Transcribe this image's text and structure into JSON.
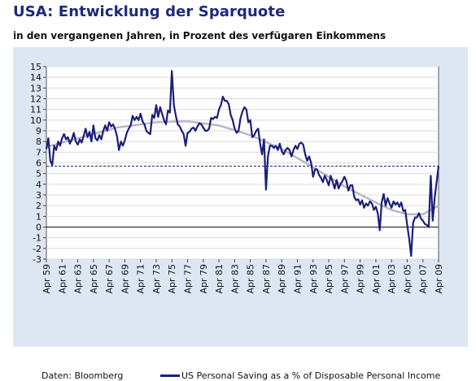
{
  "title": "USA: Entwicklung der Sparquote",
  "subtitle": "in den vergangenen Jahren, in Prozent des verfügaren Einkommens",
  "source_note": "Daten: Bloomberg",
  "caption": "",
  "colors": {
    "background": "#dde7f3",
    "plot_area": "#ffffff",
    "series": "#1a1f7a",
    "trend": "#b8b8c8",
    "reference_line": "#1a1f7a",
    "title": "#1e2a7a"
  },
  "chart_data": {
    "type": "line",
    "title": "USA: Entwicklung der Sparquote",
    "subtitle": "in den vergangenen Jahren, in Prozent des verfügaren Einkommens",
    "xlabel": "",
    "ylabel": "",
    "xlim": [
      "1959-04",
      "2009-04"
    ],
    "ylim": [
      -3,
      15
    ],
    "yticks": [
      -3,
      -2,
      -1,
      0,
      1,
      2,
      3,
      4,
      5,
      6,
      7,
      8,
      9,
      10,
      11,
      12,
      13,
      14,
      15
    ],
    "xticks": [
      "Apr 59",
      "Apr 61",
      "Apr 63",
      "Apr 65",
      "Apr 67",
      "Apr 69",
      "Apr 71",
      "Apr 73",
      "Apr 75",
      "Apr 77",
      "Apr 79",
      "Apr 81",
      "Apr 83",
      "Apr 85",
      "Apr 87",
      "Apr 89",
      "Apr 91",
      "Apr 93",
      "Apr 95",
      "Apr 97",
      "Apr 99",
      "Apr 01",
      "Apr 03",
      "Apr 05",
      "Apr 07",
      "Apr 09"
    ],
    "grid": "horizontal",
    "legend": "bottom",
    "reference_line": {
      "y": 5.7,
      "style": "dashed"
    },
    "zero_line": {
      "y": 0
    },
    "series": [
      {
        "name": "US Personal Saving as a % of Disposable Personal Income",
        "style": "solid",
        "points": [
          [
            "1959-04",
            7.3
          ],
          [
            "1959-07",
            8.3
          ],
          [
            "1959-10",
            6.2
          ],
          [
            "1960-01",
            5.8
          ],
          [
            "1960-04",
            7.6
          ],
          [
            "1960-07",
            7.2
          ],
          [
            "1960-10",
            8.0
          ],
          [
            "1961-01",
            7.6
          ],
          [
            "1961-04",
            8.3
          ],
          [
            "1961-07",
            8.7
          ],
          [
            "1961-10",
            8.2
          ],
          [
            "1962-01",
            8.4
          ],
          [
            "1962-04",
            7.8
          ],
          [
            "1962-07",
            8.2
          ],
          [
            "1962-10",
            8.8
          ],
          [
            "1963-01",
            8.0
          ],
          [
            "1963-04",
            7.7
          ],
          [
            "1963-07",
            8.2
          ],
          [
            "1963-10",
            7.9
          ],
          [
            "1964-01",
            8.5
          ],
          [
            "1964-04",
            9.2
          ],
          [
            "1964-07",
            8.4
          ],
          [
            "1964-10",
            8.9
          ],
          [
            "1965-01",
            8.0
          ],
          [
            "1965-04",
            9.5
          ],
          [
            "1965-07",
            8.3
          ],
          [
            "1965-10",
            8.1
          ],
          [
            "1966-01",
            8.6
          ],
          [
            "1966-04",
            8.2
          ],
          [
            "1966-07",
            9.0
          ],
          [
            "1966-10",
            9.5
          ],
          [
            "1967-01",
            9.0
          ],
          [
            "1967-04",
            9.8
          ],
          [
            "1967-07",
            9.4
          ],
          [
            "1967-10",
            9.6
          ],
          [
            "1968-01",
            9.2
          ],
          [
            "1968-04",
            8.5
          ],
          [
            "1968-07",
            7.2
          ],
          [
            "1968-10",
            8.0
          ],
          [
            "1969-01",
            7.6
          ],
          [
            "1969-04",
            8.1
          ],
          [
            "1969-07",
            8.8
          ],
          [
            "1969-10",
            9.2
          ],
          [
            "1970-01",
            9.5
          ],
          [
            "1970-04",
            10.4
          ],
          [
            "1970-07",
            10.0
          ],
          [
            "1970-10",
            10.3
          ],
          [
            "1971-01",
            10.0
          ],
          [
            "1971-04",
            10.6
          ],
          [
            "1971-07",
            9.9
          ],
          [
            "1971-10",
            9.6
          ],
          [
            "1972-01",
            9.0
          ],
          [
            "1972-04",
            8.8
          ],
          [
            "1972-07",
            8.7
          ],
          [
            "1972-10",
            10.5
          ],
          [
            "1973-01",
            10.2
          ],
          [
            "1973-04",
            11.4
          ],
          [
            "1973-07",
            10.3
          ],
          [
            "1973-10",
            11.2
          ],
          [
            "1974-01",
            10.6
          ],
          [
            "1974-04",
            10.0
          ],
          [
            "1974-07",
            9.6
          ],
          [
            "1974-10",
            10.9
          ],
          [
            "1975-01",
            10.7
          ],
          [
            "1975-04",
            14.6
          ],
          [
            "1975-07",
            11.4
          ],
          [
            "1975-10",
            10.4
          ],
          [
            "1976-01",
            9.6
          ],
          [
            "1976-04",
            9.4
          ],
          [
            "1976-07",
            9.0
          ],
          [
            "1976-10",
            8.7
          ],
          [
            "1977-01",
            7.6
          ],
          [
            "1977-04",
            8.8
          ],
          [
            "1977-07",
            8.9
          ],
          [
            "1977-10",
            9.2
          ],
          [
            "1978-01",
            9.3
          ],
          [
            "1978-04",
            9.0
          ],
          [
            "1978-07",
            9.4
          ],
          [
            "1978-10",
            9.7
          ],
          [
            "1979-01",
            9.6
          ],
          [
            "1979-04",
            9.3
          ],
          [
            "1979-07",
            9.0
          ],
          [
            "1979-10",
            9.0
          ],
          [
            "1980-01",
            9.2
          ],
          [
            "1980-04",
            10.2
          ],
          [
            "1980-07",
            10.1
          ],
          [
            "1980-10",
            10.3
          ],
          [
            "1981-01",
            10.2
          ],
          [
            "1981-04",
            11.0
          ],
          [
            "1981-07",
            11.4
          ],
          [
            "1981-10",
            12.2
          ],
          [
            "1982-01",
            11.8
          ],
          [
            "1982-04",
            11.8
          ],
          [
            "1982-07",
            11.5
          ],
          [
            "1982-10",
            10.5
          ],
          [
            "1983-01",
            10.0
          ],
          [
            "1983-04",
            9.2
          ],
          [
            "1983-07",
            8.8
          ],
          [
            "1983-10",
            9.0
          ],
          [
            "1984-01",
            10.2
          ],
          [
            "1984-04",
            10.8
          ],
          [
            "1984-07",
            11.2
          ],
          [
            "1984-10",
            11.0
          ],
          [
            "1985-01",
            9.8
          ],
          [
            "1985-04",
            10.0
          ],
          [
            "1985-07",
            8.4
          ],
          [
            "1985-10",
            8.6
          ],
          [
            "1986-01",
            9.0
          ],
          [
            "1986-04",
            9.2
          ],
          [
            "1986-07",
            7.8
          ],
          [
            "1986-10",
            6.8
          ],
          [
            "1987-01",
            8.2
          ],
          [
            "1987-04",
            3.5
          ],
          [
            "1987-07",
            6.6
          ],
          [
            "1987-10",
            7.6
          ],
          [
            "1988-01",
            7.6
          ],
          [
            "1988-04",
            7.4
          ],
          [
            "1988-07",
            7.6
          ],
          [
            "1988-10",
            7.2
          ],
          [
            "1989-01",
            7.8
          ],
          [
            "1989-04",
            7.1
          ],
          [
            "1989-07",
            6.8
          ],
          [
            "1989-10",
            7.2
          ],
          [
            "1990-01",
            7.4
          ],
          [
            "1990-04",
            7.2
          ],
          [
            "1990-07",
            6.6
          ],
          [
            "1990-10",
            7.2
          ],
          [
            "1991-01",
            7.6
          ],
          [
            "1991-04",
            7.3
          ],
          [
            "1991-07",
            7.8
          ],
          [
            "1991-10",
            7.9
          ],
          [
            "1992-01",
            7.7
          ],
          [
            "1992-04",
            6.8
          ],
          [
            "1992-07",
            6.2
          ],
          [
            "1992-10",
            6.6
          ],
          [
            "1993-01",
            6.0
          ],
          [
            "1993-04",
            4.7
          ],
          [
            "1993-07",
            5.4
          ],
          [
            "1993-10",
            5.4
          ],
          [
            "1994-01",
            4.9
          ],
          [
            "1994-04",
            4.6
          ],
          [
            "1994-07",
            4.2
          ],
          [
            "1994-10",
            4.8
          ],
          [
            "1995-01",
            4.4
          ],
          [
            "1995-04",
            3.9
          ],
          [
            "1995-07",
            4.8
          ],
          [
            "1995-10",
            4.2
          ],
          [
            "1996-01",
            3.6
          ],
          [
            "1996-04",
            4.4
          ],
          [
            "1996-07",
            3.6
          ],
          [
            "1996-10",
            4.0
          ],
          [
            "1997-01",
            4.3
          ],
          [
            "1997-04",
            4.7
          ],
          [
            "1997-07",
            4.3
          ],
          [
            "1997-10",
            3.4
          ],
          [
            "1998-01",
            3.9
          ],
          [
            "1998-04",
            3.9
          ],
          [
            "1998-07",
            2.8
          ],
          [
            "1998-10",
            2.5
          ],
          [
            "1999-01",
            2.6
          ],
          [
            "1999-04",
            2.1
          ],
          [
            "1999-07",
            2.5
          ],
          [
            "1999-10",
            1.8
          ],
          [
            "2000-01",
            2.2
          ],
          [
            "2000-04",
            2.0
          ],
          [
            "2000-07",
            2.4
          ],
          [
            "2000-10",
            2.2
          ],
          [
            "2001-01",
            1.6
          ],
          [
            "2001-04",
            1.9
          ],
          [
            "2001-07",
            1.3
          ],
          [
            "2001-10",
            -0.3
          ],
          [
            "2002-01",
            2.3
          ],
          [
            "2002-04",
            3.1
          ],
          [
            "2002-07",
            2.0
          ],
          [
            "2002-10",
            2.7
          ],
          [
            "2003-01",
            2.2
          ],
          [
            "2003-04",
            1.8
          ],
          [
            "2003-07",
            2.4
          ],
          [
            "2003-10",
            2.1
          ],
          [
            "2004-01",
            2.3
          ],
          [
            "2004-04",
            1.9
          ],
          [
            "2004-07",
            2.3
          ],
          [
            "2004-10",
            1.5
          ],
          [
            "2005-01",
            1.6
          ],
          [
            "2005-04",
            0.2
          ],
          [
            "2005-07",
            -1.1
          ],
          [
            "2005-10",
            -2.7
          ],
          [
            "2006-01",
            0.4
          ],
          [
            "2006-04",
            0.9
          ],
          [
            "2006-07",
            0.9
          ],
          [
            "2006-10",
            1.3
          ],
          [
            "2007-01",
            0.8
          ],
          [
            "2007-04",
            0.6
          ],
          [
            "2007-07",
            0.3
          ],
          [
            "2007-10",
            0.2
          ],
          [
            "2008-01",
            0.0
          ],
          [
            "2008-04",
            4.8
          ],
          [
            "2008-07",
            0.6
          ],
          [
            "2008-10",
            2.7
          ],
          [
            "2009-01",
            4.2
          ],
          [
            "2009-04",
            5.7
          ]
        ]
      },
      {
        "style": "trend",
        "points": [
          [
            "1959-04",
            7.5
          ],
          [
            "1963-04",
            8.3
          ],
          [
            "1968-04",
            9.3
          ],
          [
            "1973-04",
            9.8
          ],
          [
            "1977-04",
            9.9
          ],
          [
            "1981-04",
            9.5
          ],
          [
            "1985-04",
            8.6
          ],
          [
            "1989-04",
            7.3
          ],
          [
            "1993-04",
            5.6
          ],
          [
            "1997-04",
            3.8
          ],
          [
            "2001-04",
            2.3
          ],
          [
            "2003-04",
            1.6
          ],
          [
            "2005-04",
            1.2
          ],
          [
            "2007-04",
            1.2
          ],
          [
            "2009-04",
            2.0
          ]
        ]
      }
    ]
  }
}
